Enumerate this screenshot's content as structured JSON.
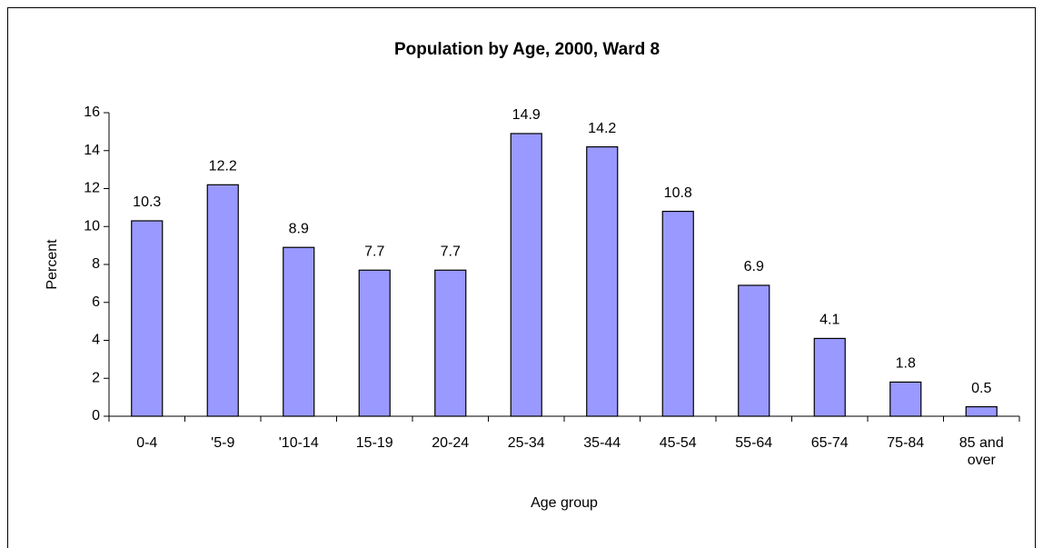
{
  "chart_data": {
    "type": "bar",
    "title": "Population by Age, 2000, Ward 8",
    "x_label": "Age group",
    "y_label": "Percent",
    "categories": [
      "0-4",
      "'5-9",
      "'10-14",
      "15-19",
      "20-24",
      "25-34",
      "35-44",
      "45-54",
      "55-64",
      "65-74",
      "75-84",
      "85 and over"
    ],
    "values": [
      10.3,
      12.2,
      8.9,
      7.7,
      7.7,
      14.9,
      14.2,
      10.8,
      6.9,
      4.1,
      1.8,
      0.5
    ],
    "color": "#9999ff",
    "ylim": [
      0,
      16
    ],
    "yticks": [
      0,
      2,
      4,
      6,
      8,
      10,
      12,
      14,
      16
    ],
    "grid": false
  }
}
